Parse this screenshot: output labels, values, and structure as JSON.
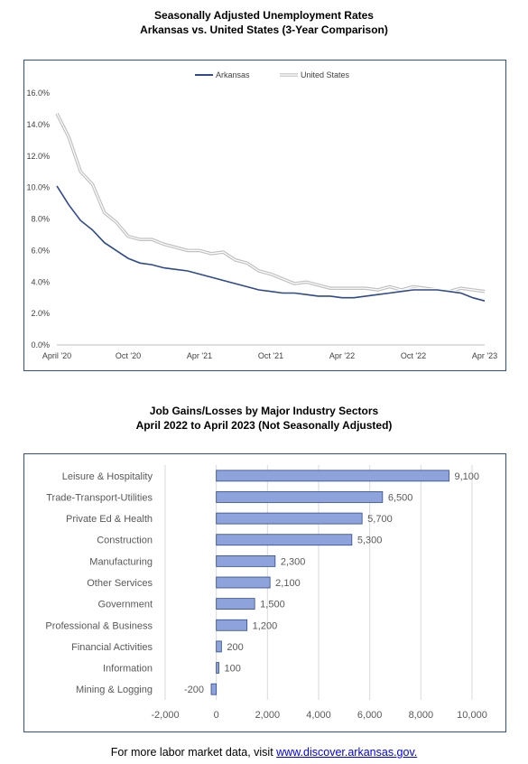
{
  "chart1": {
    "title_line1": "Seasonally Adjusted Unemployment Rates",
    "title_line2": "Arkansas vs. United States (3-Year Comparison)",
    "chart_data": {
      "type": "line",
      "title": "Seasonally Adjusted Unemployment Rates Arkansas vs. United States (3-Year Comparison)",
      "x": [
        "April '20",
        "May '20",
        "Jun '20",
        "Jul '20",
        "Aug '20",
        "Sep '20",
        "Oct '20",
        "Nov '20",
        "Dec '20",
        "Jan '21",
        "Feb '21",
        "Mar '21",
        "Apr '21",
        "May '21",
        "Jun '21",
        "Jul '21",
        "Aug '21",
        "Sep '21",
        "Oct '21",
        "Nov '21",
        "Dec '21",
        "Jan '22",
        "Feb '22",
        "Mar '22",
        "Apr '22",
        "May '22",
        "Jun '22",
        "Jul '22",
        "Aug '22",
        "Sep '22",
        "Oct '22",
        "Nov '22",
        "Dec '22",
        "Jan '23",
        "Feb '23",
        "Mar '23",
        "Apr '23"
      ],
      "xticks": [
        "April '20",
        "Oct '20",
        "Apr '21",
        "Oct '21",
        "Apr '22",
        "Oct '22",
        "Apr '23"
      ],
      "yticks": [
        "0.0%",
        "2.0%",
        "4.0%",
        "6.0%",
        "8.0%",
        "10.0%",
        "12.0%",
        "14.0%",
        "16.0%"
      ],
      "ylim": [
        0,
        16
      ],
      "legend_position": "top",
      "series": [
        {
          "name": "Arkansas",
          "color": "#2f4a8c",
          "values": [
            10.1,
            8.9,
            7.9,
            7.3,
            6.5,
            6.0,
            5.5,
            5.2,
            5.1,
            4.9,
            4.8,
            4.7,
            4.5,
            4.3,
            4.1,
            3.9,
            3.7,
            3.5,
            3.4,
            3.3,
            3.3,
            3.2,
            3.1,
            3.1,
            3.0,
            3.0,
            3.1,
            3.2,
            3.3,
            3.4,
            3.5,
            3.5,
            3.5,
            3.4,
            3.3,
            3.0,
            2.8
          ]
        },
        {
          "name": "United States",
          "color": "#c0c0c0",
          "values": [
            14.7,
            13.2,
            11.0,
            10.2,
            8.4,
            7.8,
            6.9,
            6.7,
            6.7,
            6.4,
            6.2,
            6.0,
            6.0,
            5.8,
            5.9,
            5.4,
            5.2,
            4.7,
            4.5,
            4.2,
            3.9,
            4.0,
            3.8,
            3.6,
            3.6,
            3.6,
            3.6,
            3.5,
            3.7,
            3.5,
            3.7,
            3.6,
            3.5,
            3.4,
            3.6,
            3.5,
            3.4
          ]
        }
      ]
    }
  },
  "chart2": {
    "title_line1": "Job Gains/Losses by Major Industry Sectors",
    "title_line2": "April 2022 to April 2023 (Not Seasonally Adjusted)",
    "chart_data": {
      "type": "bar",
      "orientation": "horizontal",
      "categories": [
        "Leisure & Hospitality",
        "Trade-Transport-Utilities",
        "Private Ed & Health",
        "Construction",
        "Manufacturing",
        "Other Services",
        "Government",
        "Professional & Business",
        "Financial Activities",
        "Information",
        "Mining & Logging"
      ],
      "values": [
        9100,
        6500,
        5700,
        5300,
        2300,
        2100,
        1500,
        1200,
        200,
        100,
        -200
      ],
      "data_labels": [
        "9,100",
        "6,500",
        "5,700",
        "5,300",
        "2,300",
        "2,100",
        "1,500",
        "1,200",
        "200",
        "100",
        "-200"
      ],
      "xticks": [
        "-2,000",
        "0",
        "2,000",
        "4,000",
        "6,000",
        "8,000",
        "10,000"
      ],
      "xlim": [
        -2000,
        10000
      ],
      "bar_color": "#8ea2dc"
    }
  },
  "footer": {
    "prefix": "For more labor market data, visit ",
    "link_text": "www.discover.arkansas.gov."
  }
}
